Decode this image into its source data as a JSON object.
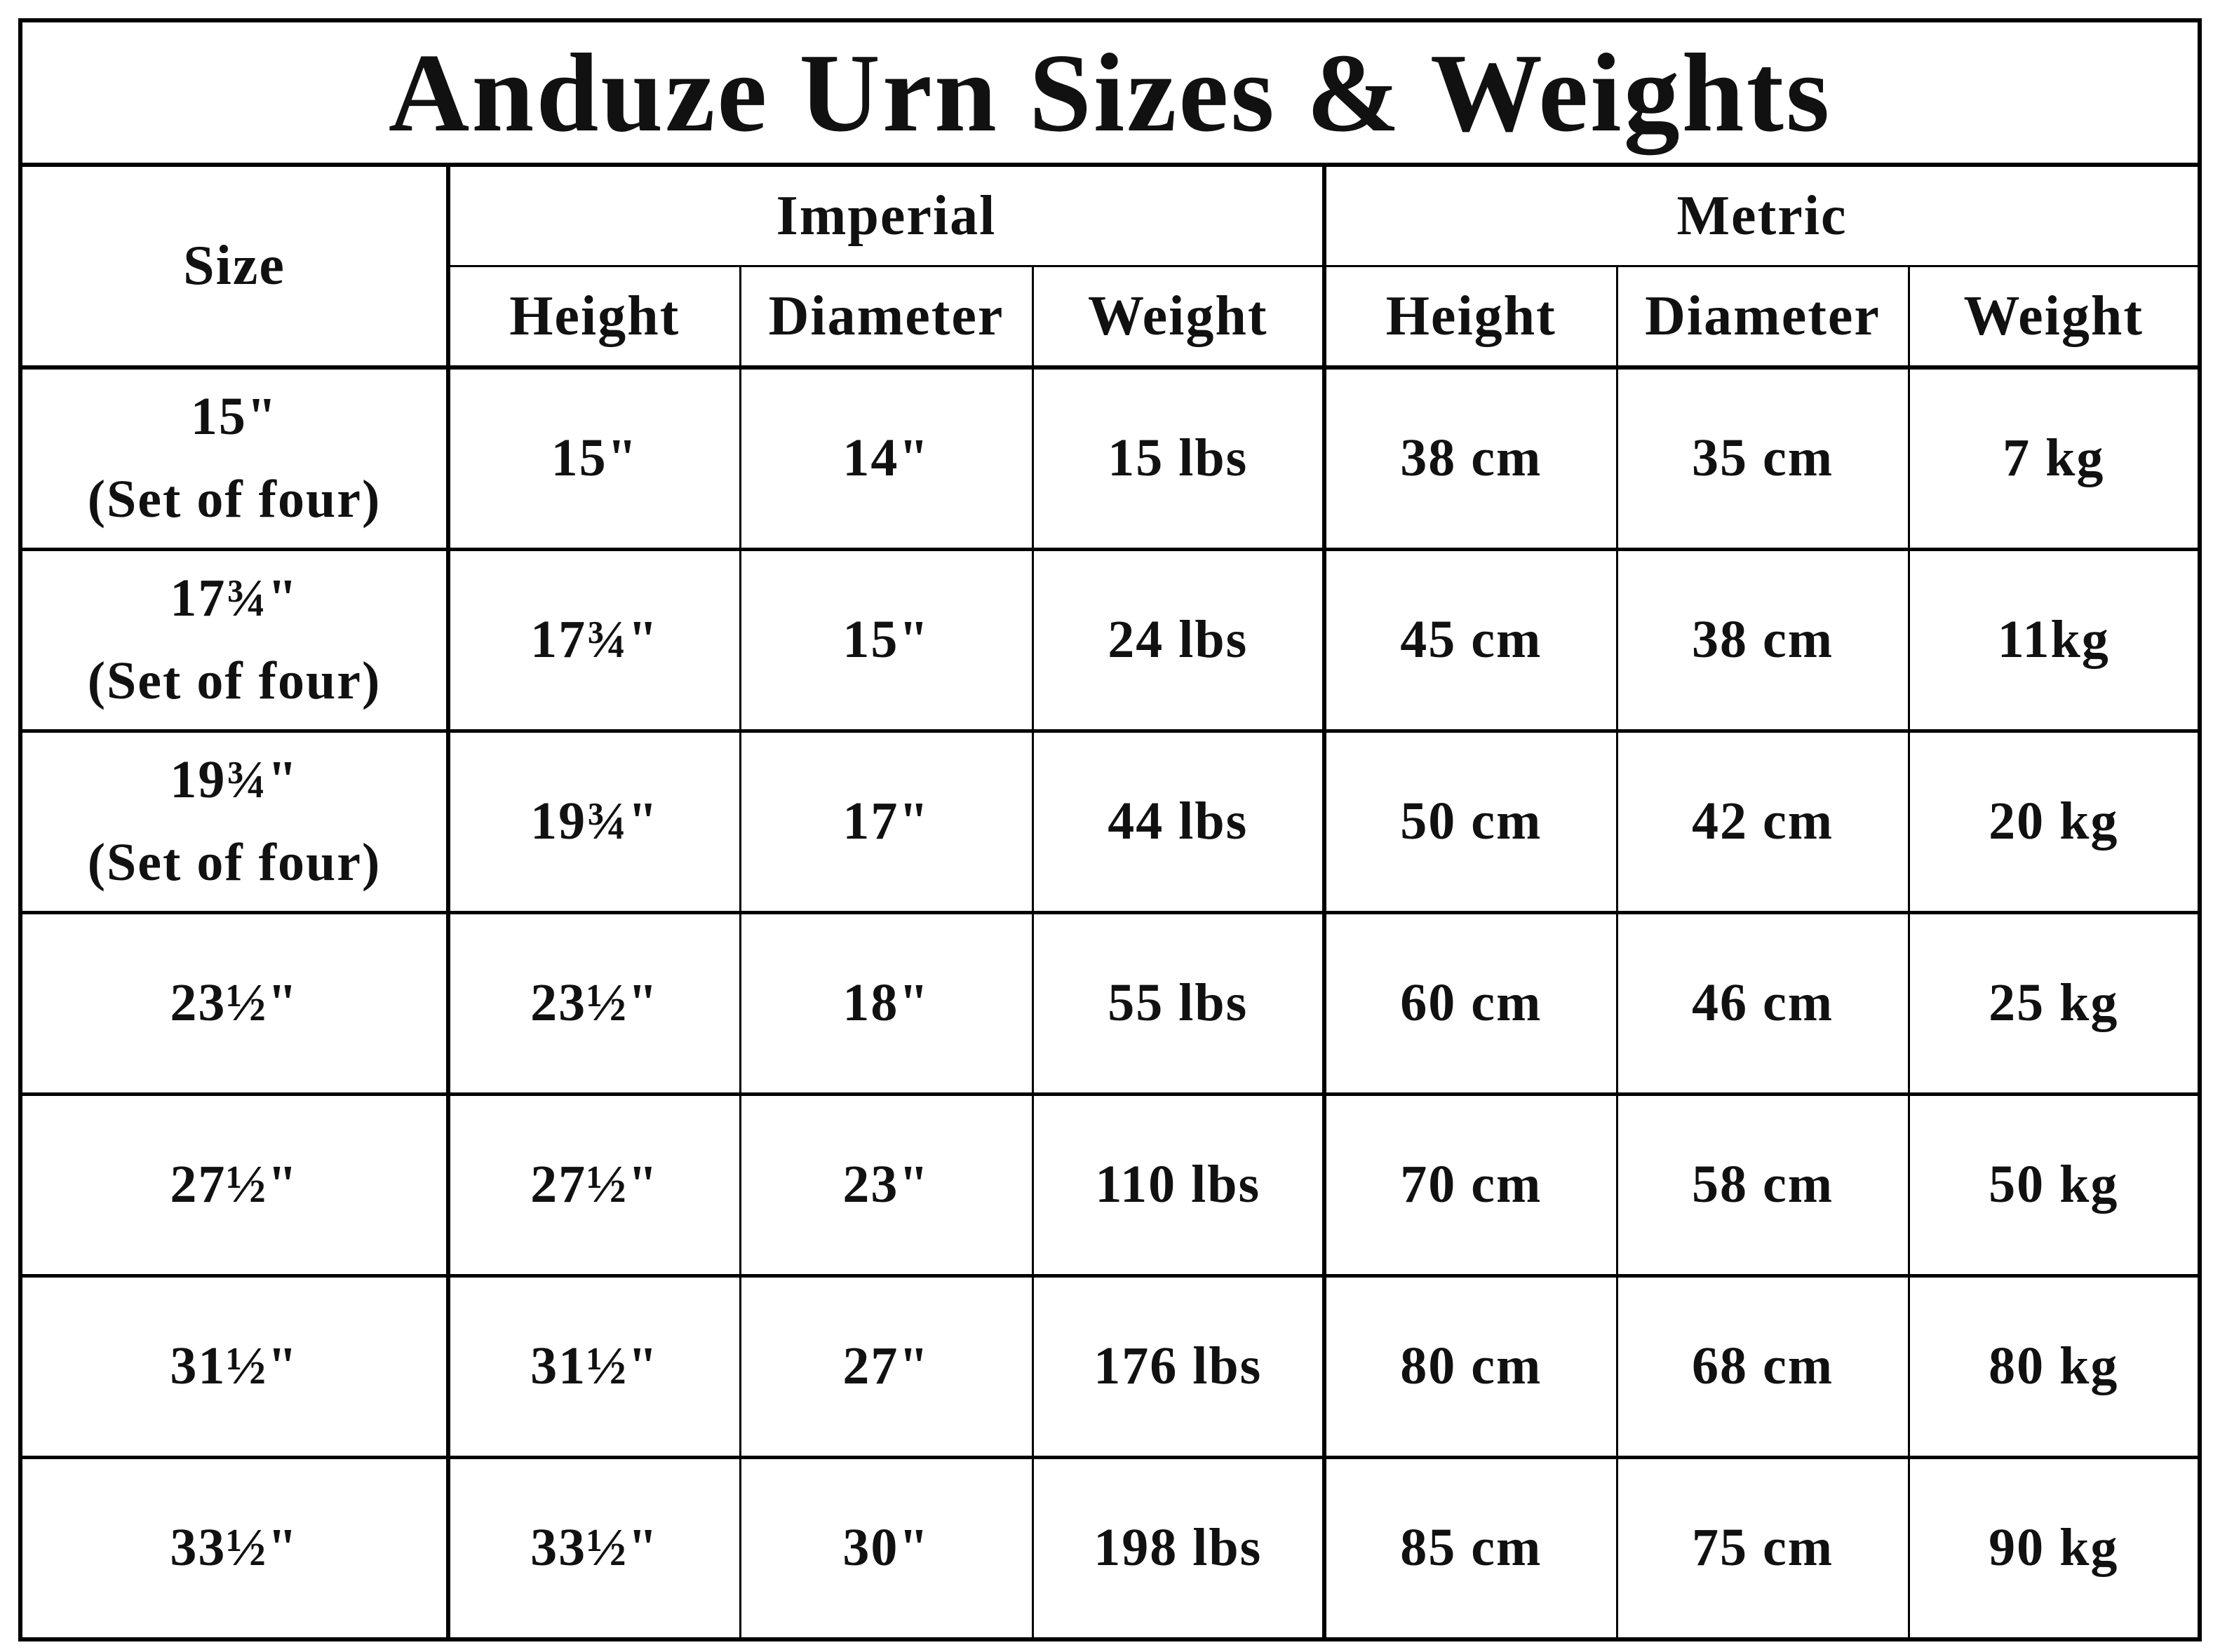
{
  "title": "Anduze Urn Sizes & Weights",
  "headers": {
    "size": "Size",
    "imperial": "Imperial",
    "metric": "Metric",
    "sub": [
      "Height",
      "Diameter",
      "Weight",
      "Height",
      "Diameter",
      "Weight"
    ]
  },
  "rows": [
    {
      "size": "15\"",
      "note": "(Set of four)",
      "cells": [
        "15\"",
        "14\"",
        "15 lbs",
        "38 cm",
        "35 cm",
        "7 kg"
      ]
    },
    {
      "size": "17¾\"",
      "note": "(Set of four)",
      "cells": [
        "17¾\"",
        "15\"",
        "24 lbs",
        "45 cm",
        "38 cm",
        "11kg"
      ]
    },
    {
      "size": "19¾\"",
      "note": "(Set of four)",
      "cells": [
        "19¾\"",
        "17\"",
        "44 lbs",
        "50 cm",
        "42 cm",
        "20 kg"
      ]
    },
    {
      "size": "23½\"",
      "cells": [
        "23½\"",
        "18\"",
        "55 lbs",
        "60 cm",
        "46 cm",
        "25 kg"
      ]
    },
    {
      "size": "27½\"",
      "cells": [
        "27½\"",
        "23\"",
        "110 lbs",
        "70 cm",
        "58 cm",
        "50 kg"
      ]
    },
    {
      "size": "31½\"",
      "cells": [
        "31½\"",
        "27\"",
        "176 lbs",
        "80 cm",
        "68 cm",
        "80 kg"
      ]
    },
    {
      "size": "33½\"",
      "cells": [
        "33½\"",
        "30\"",
        "198 lbs",
        "85 cm",
        "75 cm",
        "90 kg"
      ]
    }
  ]
}
